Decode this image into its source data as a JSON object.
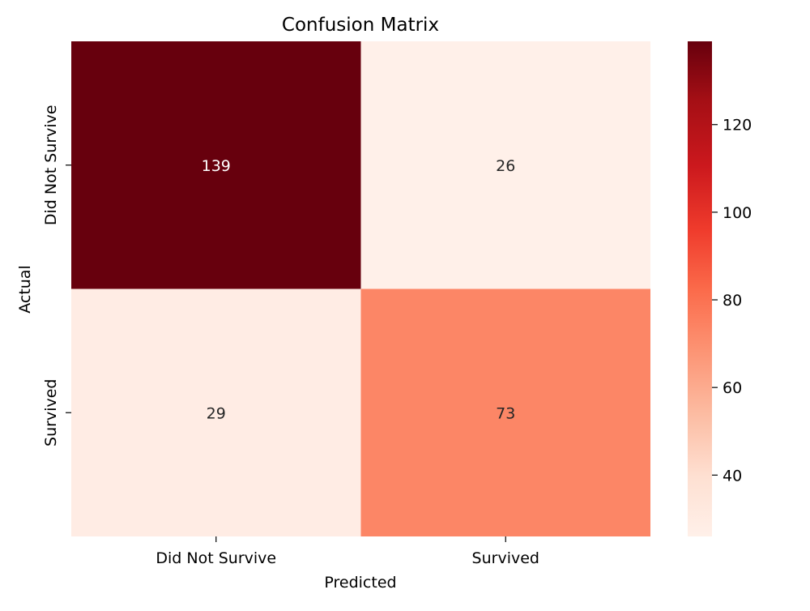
{
  "chart_data": {
    "type": "heatmap",
    "title": "Confusion Matrix",
    "xlabel": "Predicted",
    "ylabel": "Actual",
    "x_categories": [
      "Did Not Survive",
      "Survived"
    ],
    "y_categories": [
      "Did Not Survive",
      "Survived"
    ],
    "values": [
      [
        139,
        26
      ],
      [
        29,
        73
      ]
    ],
    "colormap": "Reds",
    "vmin": 26,
    "vmax": 139,
    "colorbar_ticks": [
      40,
      60,
      80,
      100,
      120
    ],
    "colorbar_tick_labels": [
      "40",
      "60",
      "80",
      "100",
      "120"
    ],
    "annotation_dark_color": "#262626",
    "annotation_light_color": "#ffffff"
  }
}
